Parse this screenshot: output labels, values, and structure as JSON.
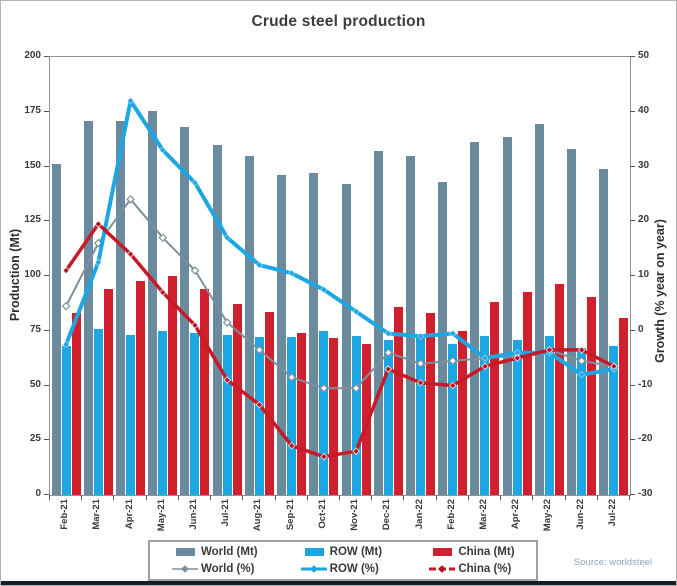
{
  "source_note": "Source: worldsteel",
  "colors": {
    "world_bar": "#6b8a9e",
    "row_bar": "#1ca6e2",
    "china_bar": "#d0202d",
    "world_line": "#7f8f9d",
    "row_line": "#1ca6e2",
    "china_line": "#c61a28",
    "china_marker": "#b01220",
    "axis_text": "#3a3a3a",
    "frame": "#8f959a",
    "bottom_strip": "#121d27",
    "source_text": "#92a5b6"
  },
  "chart_data": {
    "type": "bar+line",
    "title": "Crude steel production",
    "categories": [
      "Feb-21",
      "Mar-21",
      "Apr-21",
      "May-21",
      "Jun-21",
      "Jul-21",
      "Aug-21",
      "Sep-21",
      "Oct-21",
      "Nov-21",
      "Dec-21",
      "Jan-22",
      "Feb-22",
      "Mar-22",
      "Apr-22",
      "May-22",
      "Jun-22",
      "Jul-22"
    ],
    "bar_series": [
      {
        "name": "World (Mt)",
        "axis": "left",
        "color_key": "world_bar",
        "values": [
          151,
          171,
          171,
          175.5,
          168,
          160,
          155,
          146,
          147,
          142,
          157,
          155,
          143,
          161,
          163.5,
          169.5,
          158,
          149
        ]
      },
      {
        "name": "ROW (Mt)",
        "axis": "left",
        "color_key": "row_bar",
        "values": [
          68,
          76,
          73,
          75,
          74,
          73,
          72,
          72,
          75,
          72.5,
          71,
          72,
          69,
          72.5,
          71,
          72.5,
          67,
          68
        ]
      },
      {
        "name": "China (Mt)",
        "axis": "left",
        "color_key": "china_bar",
        "values": [
          83,
          94,
          97.5,
          100,
          94,
          87,
          83.5,
          74,
          71.5,
          69,
          86,
          83,
          75,
          88,
          92.5,
          96.5,
          90.5,
          81
        ]
      }
    ],
    "line_series": [
      {
        "name": "World (%)",
        "axis": "right",
        "color_key": "world_line",
        "marker": "open-diamond",
        "stroke_width": 2,
        "values": [
          4.5,
          16,
          24,
          17,
          11,
          1.5,
          -3.5,
          -8.5,
          -10.5,
          -10.5,
          -4,
          -6,
          -5.5,
          -5,
          -4.5,
          -3.5,
          -5.5,
          -6.5
        ]
      },
      {
        "name": "ROW (%)",
        "axis": "right",
        "color_key": "row_line",
        "marker": "diamond",
        "stroke_width": 4,
        "values": [
          -2.5,
          12.5,
          42,
          33,
          27,
          17,
          12,
          10.5,
          7.5,
          3.5,
          -0.5,
          -1,
          -0.5,
          -5,
          -4,
          -4,
          -8,
          -7
        ]
      },
      {
        "name": "China (%)",
        "axis": "right",
        "color_key": "china_line",
        "marker": "diamond",
        "stroke_width": 3.5,
        "values": [
          11,
          19.5,
          14,
          7,
          1,
          -9,
          -13.5,
          -21,
          -23,
          -22,
          -7,
          -9.5,
          -10,
          -6.5,
          -5,
          -3.5,
          -3.5,
          -6.5
        ]
      }
    ],
    "left_axis": {
      "label": "Production (Mt)",
      "min": 0,
      "max": 200,
      "ticks": [
        200,
        175,
        150,
        125,
        100,
        75,
        50,
        25,
        0
      ]
    },
    "right_axis": {
      "label": "Growth (% year on year)",
      "min": -30,
      "max": 50,
      "ticks": [
        50,
        40,
        30,
        20,
        10,
        0,
        -10,
        -20,
        -30
      ]
    },
    "grid": false,
    "legend_position": "bottom",
    "legend_entries": [
      "World (Mt)",
      "ROW (Mt)",
      "China (Mt)",
      "World (%)",
      "ROW (%)",
      "China (%)"
    ]
  }
}
